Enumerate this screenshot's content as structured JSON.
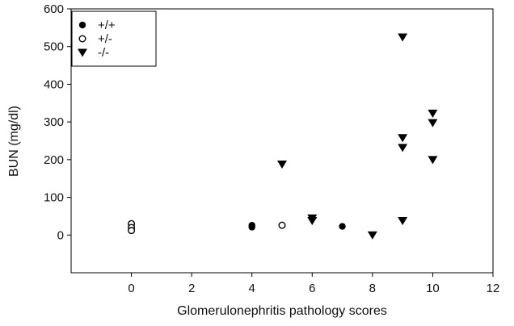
{
  "chart_data": {
    "type": "scatter",
    "title": "",
    "xlabel": "Glomerulonephritis pathology scores",
    "ylabel": "BUN (mg/dl)",
    "xlim": [
      -2,
      12
    ],
    "ylim": [
      -100,
      600
    ],
    "xticks": [
      0,
      2,
      4,
      6,
      8,
      10,
      12
    ],
    "yticks": [
      0,
      100,
      200,
      300,
      400,
      500,
      600
    ],
    "grid": false,
    "legend_position": "top-left",
    "series": [
      {
        "name": "+/+",
        "marker": "filled-circle",
        "color": "#000000",
        "points": [
          {
            "x": 0,
            "y": 28
          },
          {
            "x": 0,
            "y": 22
          },
          {
            "x": 0,
            "y": 16
          },
          {
            "x": 4,
            "y": 26
          },
          {
            "x": 4,
            "y": 21
          },
          {
            "x": 7,
            "y": 23
          }
        ]
      },
      {
        "name": "+/-",
        "marker": "open-circle",
        "color": "#000000",
        "points": [
          {
            "x": 0,
            "y": 30
          },
          {
            "x": 0,
            "y": 20
          },
          {
            "x": 0,
            "y": 12
          },
          {
            "x": 5,
            "y": 26
          }
        ]
      },
      {
        "name": "-/-",
        "marker": "down-triangle",
        "color": "#000000",
        "points": [
          {
            "x": 5,
            "y": 188
          },
          {
            "x": 6,
            "y": 45
          },
          {
            "x": 6,
            "y": 38
          },
          {
            "x": 8,
            "y": 0
          },
          {
            "x": 9,
            "y": 525
          },
          {
            "x": 9,
            "y": 258
          },
          {
            "x": 9,
            "y": 232
          },
          {
            "x": 9,
            "y": 38
          },
          {
            "x": 10,
            "y": 323
          },
          {
            "x": 10,
            "y": 298
          },
          {
            "x": 10,
            "y": 200
          }
        ]
      }
    ]
  }
}
